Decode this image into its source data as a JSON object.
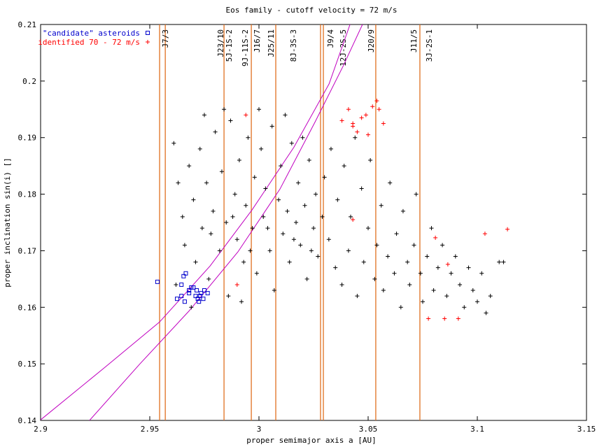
{
  "chart_data": {
    "type": "scatter",
    "title": "Eos family - cutoff velocity = 72 m/s",
    "x_label": "proper semimajor axis a [AU]",
    "y_label": "proper inclination sin(i) []",
    "xlim": [
      2.9,
      3.15
    ],
    "xticks": [
      2.9,
      2.95,
      3,
      3.05,
      3.1,
      3.15
    ],
    "ylim": [
      0.14,
      0.21
    ],
    "yticks": [
      0.14,
      0.15,
      0.16,
      0.17,
      0.18,
      0.19,
      0.2,
      0.21
    ],
    "series": [
      {
        "color": "#000000",
        "marker": "plus",
        "x": [
          2.961,
          2.963,
          2.965,
          2.966,
          2.968,
          2.97,
          2.971,
          2.973,
          2.974,
          2.976,
          2.977,
          2.979,
          2.98,
          2.982,
          2.983,
          2.985,
          2.986,
          2.987,
          2.989,
          2.99,
          2.991,
          2.993,
          2.994,
          2.995,
          2.997,
          2.998,
          2.999,
          3.001,
          3.002,
          3.003,
          3.005,
          3.006,
          3.007,
          3.009,
          3.01,
          3.011,
          3.013,
          3.014,
          3.015,
          3.017,
          3.018,
          3.019,
          3.021,
          3.022,
          3.023,
          3.025,
          3.026,
          3.027,
          3.029,
          3.03,
          3.032,
          3.033,
          3.035,
          3.036,
          3.038,
          3.039,
          3.041,
          3.042,
          3.044,
          3.045,
          3.047,
          3.048,
          3.05,
          3.051,
          3.053,
          3.054,
          3.056,
          3.057,
          3.059,
          3.06,
          3.062,
          3.063,
          3.065,
          3.066,
          3.068,
          3.069,
          3.071,
          3.072,
          3.074,
          3.075,
          3.077,
          3.079,
          3.08,
          3.082,
          3.084,
          3.086,
          3.088,
          3.09,
          3.092,
          3.094,
          3.096,
          3.098,
          3.1,
          3.102,
          3.104,
          3.106,
          3.11,
          3.112,
          2.962,
          2.969,
          2.975,
          2.984,
          2.992,
          3.0,
          3.012,
          3.02,
          2.978,
          2.988,
          2.996,
          3.004,
          3.016,
          3.024
        ],
        "values": [
          0.189,
          0.182,
          0.176,
          0.171,
          0.185,
          0.179,
          0.168,
          0.188,
          0.174,
          0.182,
          0.165,
          0.177,
          0.191,
          0.17,
          0.184,
          0.175,
          0.162,
          0.193,
          0.18,
          0.172,
          0.186,
          0.168,
          0.178,
          0.19,
          0.174,
          0.183,
          0.166,
          0.188,
          0.176,
          0.181,
          0.17,
          0.192,
          0.163,
          0.179,
          0.185,
          0.173,
          0.177,
          0.168,
          0.189,
          0.175,
          0.182,
          0.171,
          0.178,
          0.165,
          0.186,
          0.174,
          0.18,
          0.169,
          0.176,
          0.183,
          0.172,
          0.188,
          0.167,
          0.179,
          0.164,
          0.185,
          0.17,
          0.176,
          0.19,
          0.162,
          0.181,
          0.168,
          0.174,
          0.186,
          0.165,
          0.171,
          0.178,
          0.163,
          0.169,
          0.182,
          0.166,
          0.173,
          0.16,
          0.177,
          0.168,
          0.164,
          0.171,
          0.18,
          0.166,
          0.161,
          0.169,
          0.174,
          0.163,
          0.167,
          0.171,
          0.162,
          0.166,
          0.169,
          0.164,
          0.16,
          0.167,
          0.163,
          0.161,
          0.166,
          0.159,
          0.162,
          0.168,
          0.168,
          0.164,
          0.16,
          0.194,
          0.195,
          0.161,
          0.195,
          0.194,
          0.19,
          0.173,
          0.176,
          0.17,
          0.174,
          0.172,
          0.17
        ]
      },
      {
        "name": "\"candidate\" asteroids",
        "color": "#0000cc",
        "marker": "square",
        "x": [
          2.9535,
          2.9645,
          2.9655,
          2.9665,
          2.968,
          2.9625,
          2.9645,
          2.966,
          2.968,
          2.97,
          2.9715,
          2.973,
          2.9745,
          2.969,
          2.971,
          2.9725,
          2.9735,
          2.975,
          2.9765,
          2.972
        ],
        "values": [
          0.1645,
          0.164,
          0.1655,
          0.166,
          0.163,
          0.1615,
          0.162,
          0.161,
          0.1625,
          0.1635,
          0.163,
          0.162,
          0.1615,
          0.1635,
          0.162,
          0.161,
          0.1625,
          0.163,
          0.1625,
          0.1615
        ]
      },
      {
        "name": "identified 70 - 72 m/s",
        "color": "#ff0000",
        "marker": "plus",
        "x": [
          3.038,
          3.041,
          3.043,
          3.045,
          3.047,
          3.049,
          3.052,
          3.054,
          3.055,
          3.057,
          3.043,
          3.05,
          3.0865,
          3.1035,
          3.1138,
          3.0776,
          3.085,
          3.0913,
          3.0808,
          2.994,
          2.99,
          3.043
        ],
        "values": [
          0.193,
          0.195,
          0.192,
          0.191,
          0.1935,
          0.194,
          0.1955,
          0.1965,
          0.195,
          0.1925,
          0.1925,
          0.1905,
          0.1676,
          0.173,
          0.1738,
          0.158,
          0.158,
          0.158,
          0.1723,
          0.194,
          0.164,
          0.1755
        ]
      }
    ],
    "curves": [
      {
        "color": "#c000c0",
        "x": [
          2.9,
          2.9295,
          2.9545,
          2.9776,
          2.9968,
          3.016,
          3.0321,
          3.0417
        ],
        "values": [
          0.1401,
          0.1494,
          0.1574,
          0.1673,
          0.1772,
          0.1883,
          0.1995,
          0.21
        ]
      },
      {
        "color": "#c000c0",
        "x": [
          2.9224,
          2.9455,
          2.9679,
          2.9904,
          3.0096,
          3.0256,
          3.0385,
          3.0474
        ],
        "values": [
          0.14,
          0.15,
          0.1593,
          0.1698,
          0.1809,
          0.1927,
          0.2026,
          0.21
        ]
      }
    ],
    "resonance_color": "#e07020",
    "resonance_lines": [
      2.9545,
      2.9571,
      2.984,
      2.9965,
      3.0077,
      3.0282,
      3.0295,
      3.0535,
      3.0737
    ],
    "resonances": [
      {
        "name": "J7/3",
        "a": 2.9571
      },
      {
        "name": "J23/10",
        "a": 2.9824
      },
      {
        "name": "5J-1S-2",
        "a": 2.9862
      },
      {
        "name": "9J-11S-2",
        "a": 2.9936
      },
      {
        "name": "J16/7",
        "a": 2.999
      },
      {
        "name": "J25/11",
        "a": 3.0054
      },
      {
        "name": "8J-3S-3",
        "a": 3.0157
      },
      {
        "name": "J9/4",
        "a": 3.0327
      },
      {
        "name": "12J-2S-5",
        "a": 3.0385
      },
      {
        "name": "J20/9",
        "a": 3.0513
      },
      {
        "name": "J11/5",
        "a": 3.0708
      },
      {
        "name": "3J-2S-1",
        "a": 3.0779
      }
    ],
    "legend": "top-left"
  }
}
